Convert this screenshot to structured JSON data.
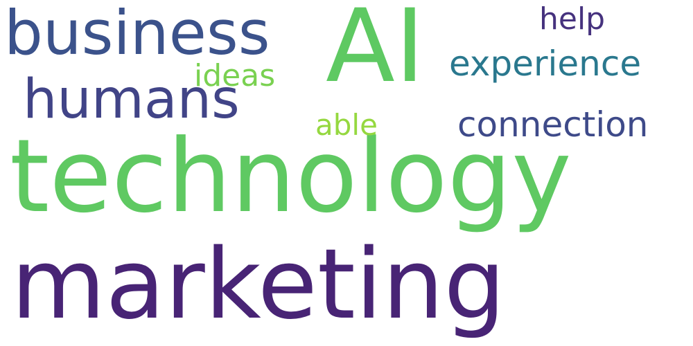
{
  "words": [
    {
      "id": "technology",
      "text": "technology",
      "color": "#5fc962"
    },
    {
      "id": "marketing",
      "text": "marketing",
      "color": "#482475"
    },
    {
      "id": "ai",
      "text": "AI",
      "color": "#5ec962"
    },
    {
      "id": "business",
      "text": "business",
      "color": "#3b528b"
    },
    {
      "id": "humans",
      "text": "humans",
      "color": "#414487"
    },
    {
      "id": "experience",
      "text": "experience",
      "color": "#2a788e"
    },
    {
      "id": "connection",
      "text": "connection",
      "color": "#3e4a89"
    },
    {
      "id": "ideas",
      "text": "ideas",
      "color": "#7ad151"
    },
    {
      "id": "able",
      "text": "able",
      "color": "#95d840"
    },
    {
      "id": "help",
      "text": "help",
      "color": "#46327e"
    }
  ]
}
